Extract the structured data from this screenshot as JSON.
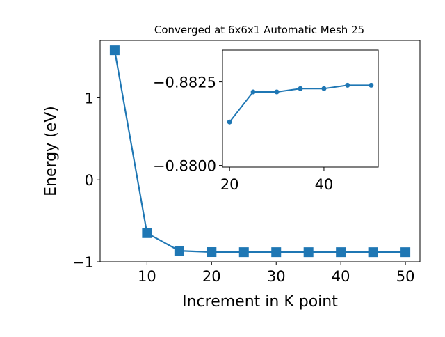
{
  "chart_data": {
    "type": "line",
    "title": "Converged at 6x6x1 Automatic Mesh 25",
    "xlabel": "Increment in K point",
    "ylabel": "Energy (eV)",
    "main": {
      "x": [
        5,
        10,
        15,
        20,
        25,
        30,
        35,
        40,
        45,
        50
      ],
      "y": [
        1.58,
        -0.65,
        -0.865,
        -0.8813,
        -0.8822,
        -0.8822,
        -0.8823,
        -0.8823,
        -0.8824,
        -0.8824
      ],
      "marker": "square",
      "color": "#1f77b4",
      "xlim": [
        2.75,
        52.25
      ],
      "ylim": [
        -1.0,
        1.7
      ],
      "xticks": [
        10,
        20,
        30,
        40,
        50
      ],
      "yticks": [
        1,
        0,
        -1
      ],
      "xtick_labels": [
        "10",
        "20",
        "30",
        "40",
        "50"
      ],
      "ytick_labels": [
        "1",
        "0",
        "−1"
      ],
      "grid": false
    },
    "inset": {
      "x": [
        20,
        25,
        30,
        35,
        40,
        45,
        50
      ],
      "y": [
        -0.8813,
        -0.8822,
        -0.8822,
        -0.8823,
        -0.8823,
        -0.8824,
        -0.8824
      ],
      "marker": "circle",
      "color": "#1f77b4",
      "xlim": [
        18.5,
        51.5
      ],
      "ylim": [
        -0.87995,
        -0.88345
      ],
      "xticks": [
        20,
        40
      ],
      "yticks": [
        -0.8825,
        -0.88
      ],
      "xtick_labels": [
        "20",
        "40"
      ],
      "ytick_labels": [
        "−0.8825",
        "−0.8800"
      ],
      "grid": false
    }
  }
}
